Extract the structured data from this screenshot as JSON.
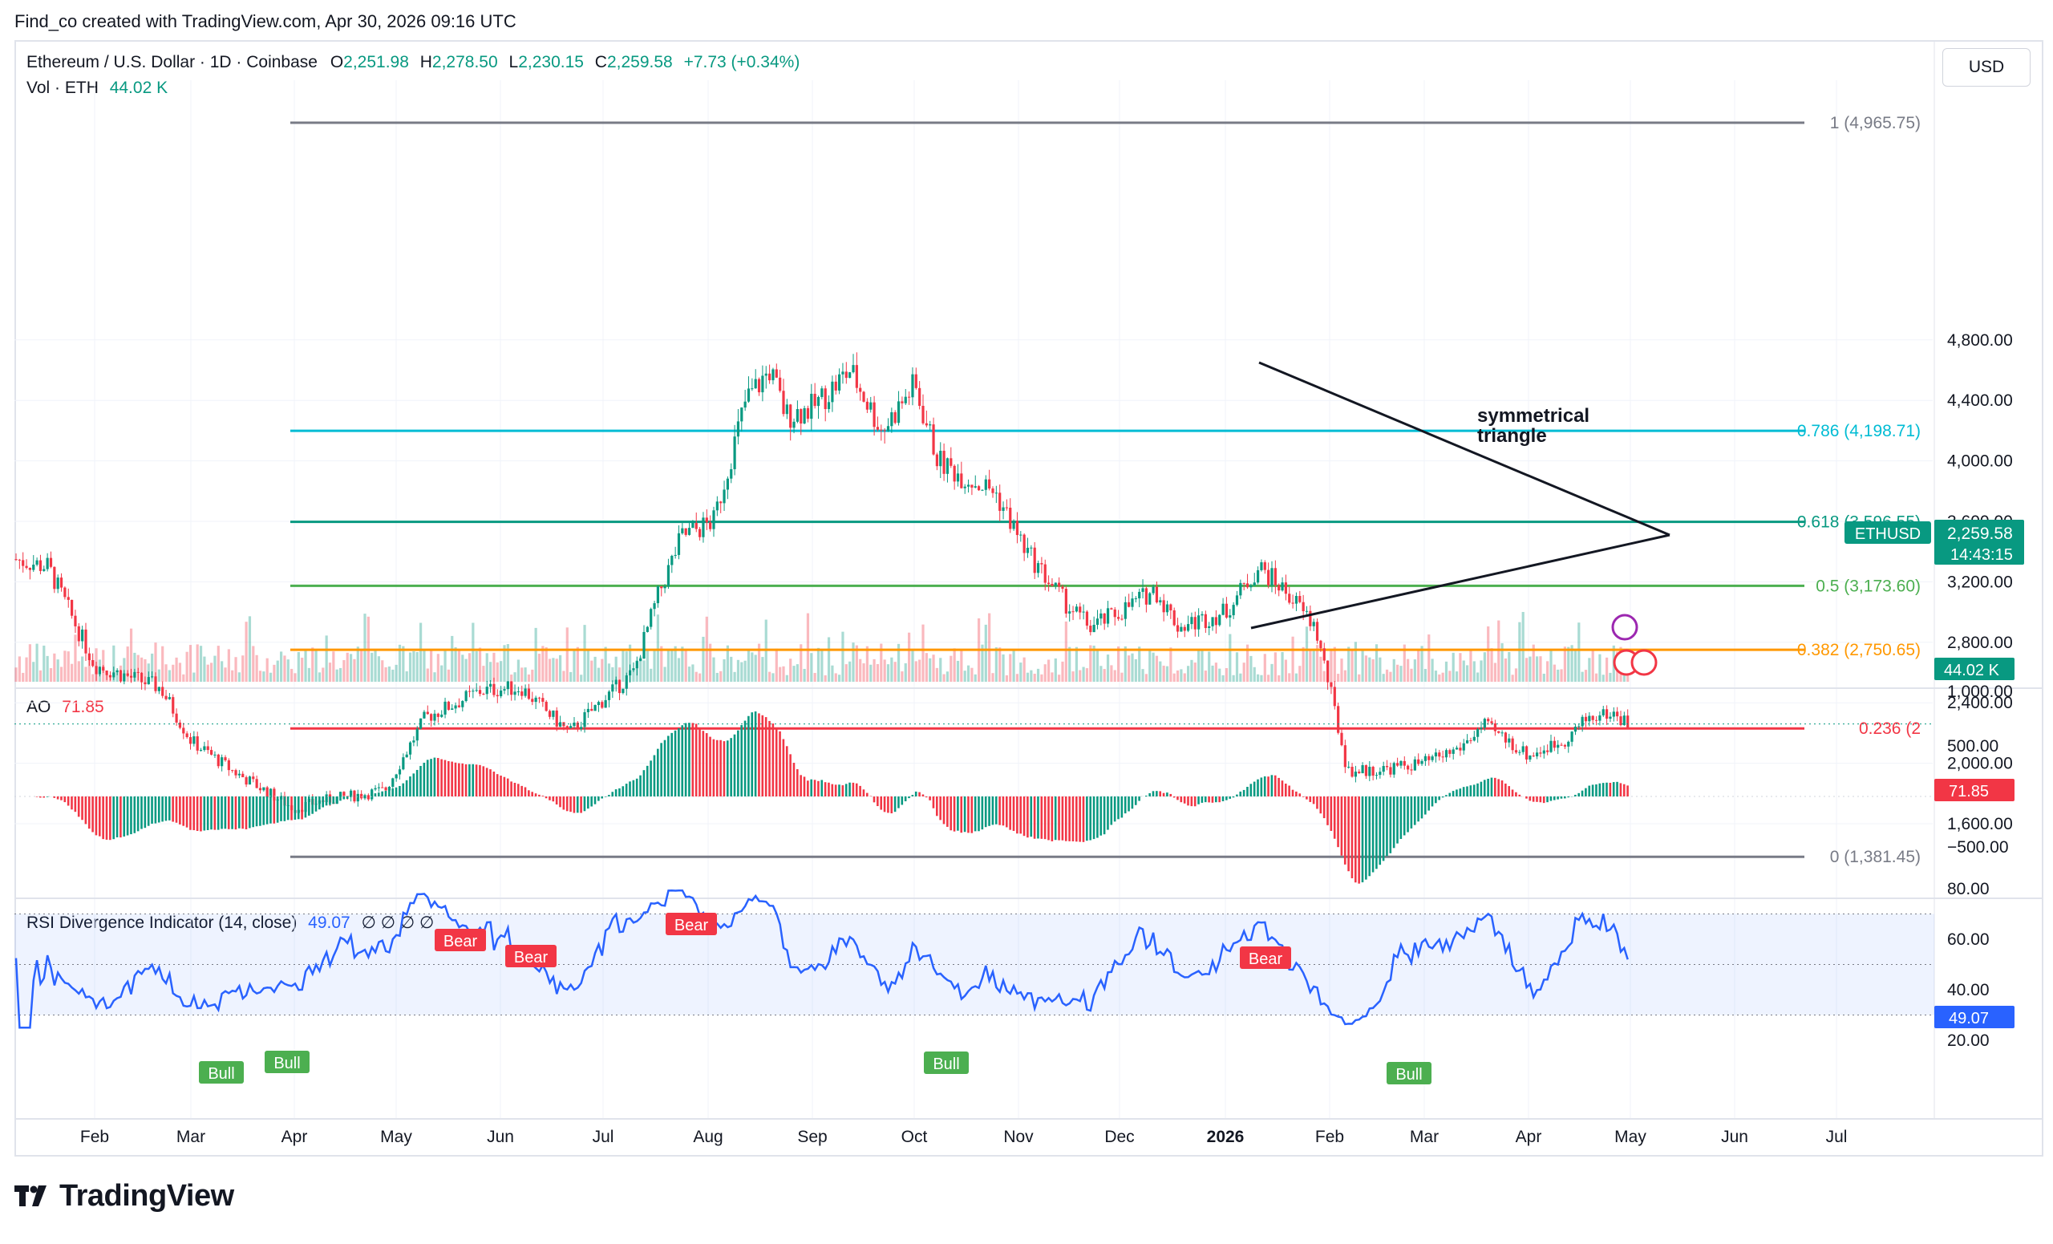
{
  "header": "Find_co created with TradingView.com, Apr 30, 2026 09:16 UTC",
  "symbol": {
    "title": "Ethereum / U.S. Dollar · 1D · Coinbase",
    "open_label": "O",
    "open": "2,251.98",
    "high_label": "H",
    "high": "2,278.50",
    "low_label": "L",
    "low": "2,230.15",
    "close_label": "C",
    "close": "2,259.58",
    "change": "+7.73 (+0.34%)",
    "vol_label": "Vol · ETH",
    "vol": "44.02 K"
  },
  "currency_button": "USD",
  "ao": {
    "label": "AO",
    "value": "71.85",
    "axis": [
      "500.00",
      "−500.00"
    ],
    "badge": "71.85"
  },
  "rsi": {
    "label": "RSI Divergence Indicator (14, close)",
    "value": "49.07",
    "glyphs": "∅ ∅ ∅ ∅",
    "axis": [
      "80.00",
      "60.00",
      "40.00",
      "20.00"
    ],
    "badge": "49.07",
    "bear_label": "Bear",
    "bull_label": "Bull"
  },
  "price_axis": [
    "4,800.00",
    "4,400.00",
    "4,000.00",
    "3,600.00",
    "3,200.00",
    "2,800.00",
    "2,400.00",
    "2,000.00",
    "1,600.00",
    "1,000.00"
  ],
  "price_badge": {
    "symbol": "ETHUSD",
    "price": "2,259.58",
    "countdown": "14:43:15",
    "vol": "44.02 K"
  },
  "annotation": "symmetrical triangle",
  "brand": "TradingView",
  "colors": {
    "up": "#089981",
    "down": "#f23645",
    "rsi": "#2962ff"
  },
  "chart_data": {
    "type": "candlestick",
    "title": "Ethereum / U.S. Dollar · 1D · Coinbase",
    "x_ticks": [
      "Feb",
      "Mar",
      "Apr",
      "May",
      "Jun",
      "Jul",
      "Aug",
      "Sep",
      "Oct",
      "Nov",
      "Dec",
      "2026",
      "Feb",
      "Mar",
      "Apr",
      "May",
      "Jun",
      "Jul"
    ],
    "ylim": [
      1000,
      5000
    ],
    "fib_levels": [
      {
        "label": "1 (4,965.75)",
        "value": 4965.75,
        "color": "#787b86"
      },
      {
        "label": "0.786 (4,198.71)",
        "value": 4198.71,
        "color": "#00bcd4"
      },
      {
        "label": "0.618 (3,596.55)",
        "value": 3596.55,
        "color": "#089981"
      },
      {
        "label": "0.5 (3,173.60)",
        "value": 3173.6,
        "color": "#4caf50"
      },
      {
        "label": "0.382 (2,750.65)",
        "value": 2750.65,
        "color": "#ff9800"
      },
      {
        "label": "0.236 (2",
        "value": 2230.0,
        "color": "#f23645"
      },
      {
        "label": "0 (1,381.45)",
        "value": 1381.45,
        "color": "#787b86"
      }
    ],
    "price_path_months": [
      "Jan",
      "Feb",
      "Mar",
      "Apr",
      "May",
      "Jun",
      "Jul",
      "Aug",
      "Sep",
      "Oct",
      "Nov",
      "Dec",
      "Jan",
      "Feb",
      "Mar",
      "Apr"
    ],
    "approx_close_by_month": [
      3300,
      2700,
      2100,
      1800,
      2500,
      2500,
      3200,
      4400,
      4200,
      3900,
      3000,
      2900,
      3000,
      1900,
      2100,
      2250
    ],
    "last_close": 2259.58
  }
}
